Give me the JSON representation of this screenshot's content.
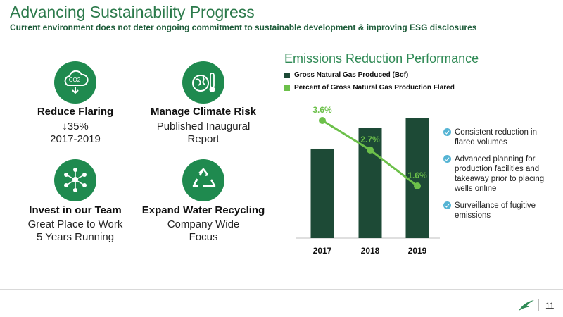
{
  "header": {
    "title": "Advancing Sustainability Progress",
    "subtitle": "Current environment does not deter ongoing commitment to sustainable development & improving ESG disclosures"
  },
  "items": [
    {
      "icon": "co2-cloud-icon",
      "title": "Reduce Flaring",
      "line1": "↓35%",
      "line2": "2017-2019"
    },
    {
      "icon": "globe-thermometer-icon",
      "title": "Manage Climate Risk",
      "line1": "Published Inaugural",
      "line2": "Report"
    },
    {
      "icon": "team-network-icon",
      "title": "Invest in our Team",
      "line1": "Great Place to Work",
      "line2": "5 Years Running"
    },
    {
      "icon": "recycle-icon",
      "title": "Expand Water Recycling",
      "line1": "Company Wide",
      "line2": "Focus"
    }
  ],
  "chart_data": {
    "type": "bar",
    "title": "Emissions Reduction Performance",
    "categories": [
      "2017",
      "2018",
      "2019"
    ],
    "series": [
      {
        "name": "Gross Natural Gas Produced (Bcf)",
        "type": "bar",
        "values": [
          0.65,
          0.8,
          0.87
        ],
        "color": "#1d4a36"
      },
      {
        "name": "Percent of Gross Natural Gas Production Flared",
        "type": "line",
        "values": [
          3.6,
          2.7,
          1.6
        ],
        "labels": [
          "3.6%",
          "2.7%",
          "1.6%"
        ],
        "color": "#6cc04a"
      }
    ],
    "legend": "top-left",
    "grid": false
  },
  "bullets": [
    "Consistent reduction in flared volumes",
    "Advanced planning for production facilities and takeaway prior to placing wells online",
    "Surveillance of fugitive emissions"
  ],
  "footer": {
    "page_number": "11",
    "logo_icon": "company-logo-icon"
  }
}
